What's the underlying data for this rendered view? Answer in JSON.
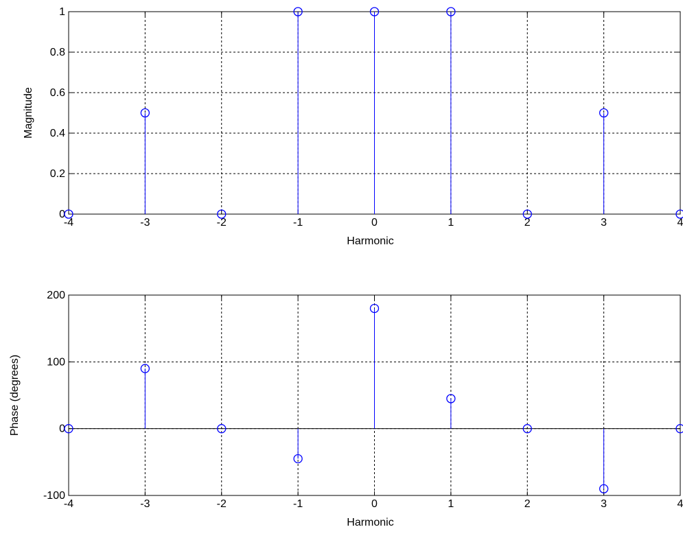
{
  "colors": {
    "background": "#ffffff",
    "axes": "#000000",
    "grid": "#000000",
    "stem": "#0000ff",
    "marker": "#0000ff"
  },
  "chart_data": [
    {
      "type": "stem",
      "xlabel": "Harmonic",
      "ylabel": "Magnitude",
      "xlim": [
        -4,
        4
      ],
      "ylim": [
        0,
        1
      ],
      "xticks": [
        -4,
        -3,
        -2,
        -1,
        0,
        1,
        2,
        3,
        4
      ],
      "yticks": [
        0,
        0.2,
        0.4,
        0.6,
        0.8,
        1
      ],
      "grid": true,
      "x": [
        -4,
        -3,
        -2,
        -1,
        0,
        1,
        2,
        3,
        4
      ],
      "y": [
        0,
        0.5,
        0,
        1,
        1,
        1,
        0,
        0.5,
        0
      ]
    },
    {
      "type": "stem",
      "xlabel": "Harmonic",
      "ylabel": "Phase (degrees)",
      "xlim": [
        -4,
        4
      ],
      "ylim": [
        -100,
        200
      ],
      "xticks": [
        -4,
        -3,
        -2,
        -1,
        0,
        1,
        2,
        3,
        4
      ],
      "yticks": [
        -100,
        0,
        100,
        200
      ],
      "grid": true,
      "x": [
        -4,
        -3,
        -2,
        -1,
        0,
        1,
        2,
        3,
        4
      ],
      "y": [
        0,
        90,
        0,
        -45,
        180,
        45,
        0,
        -90,
        0
      ]
    }
  ]
}
